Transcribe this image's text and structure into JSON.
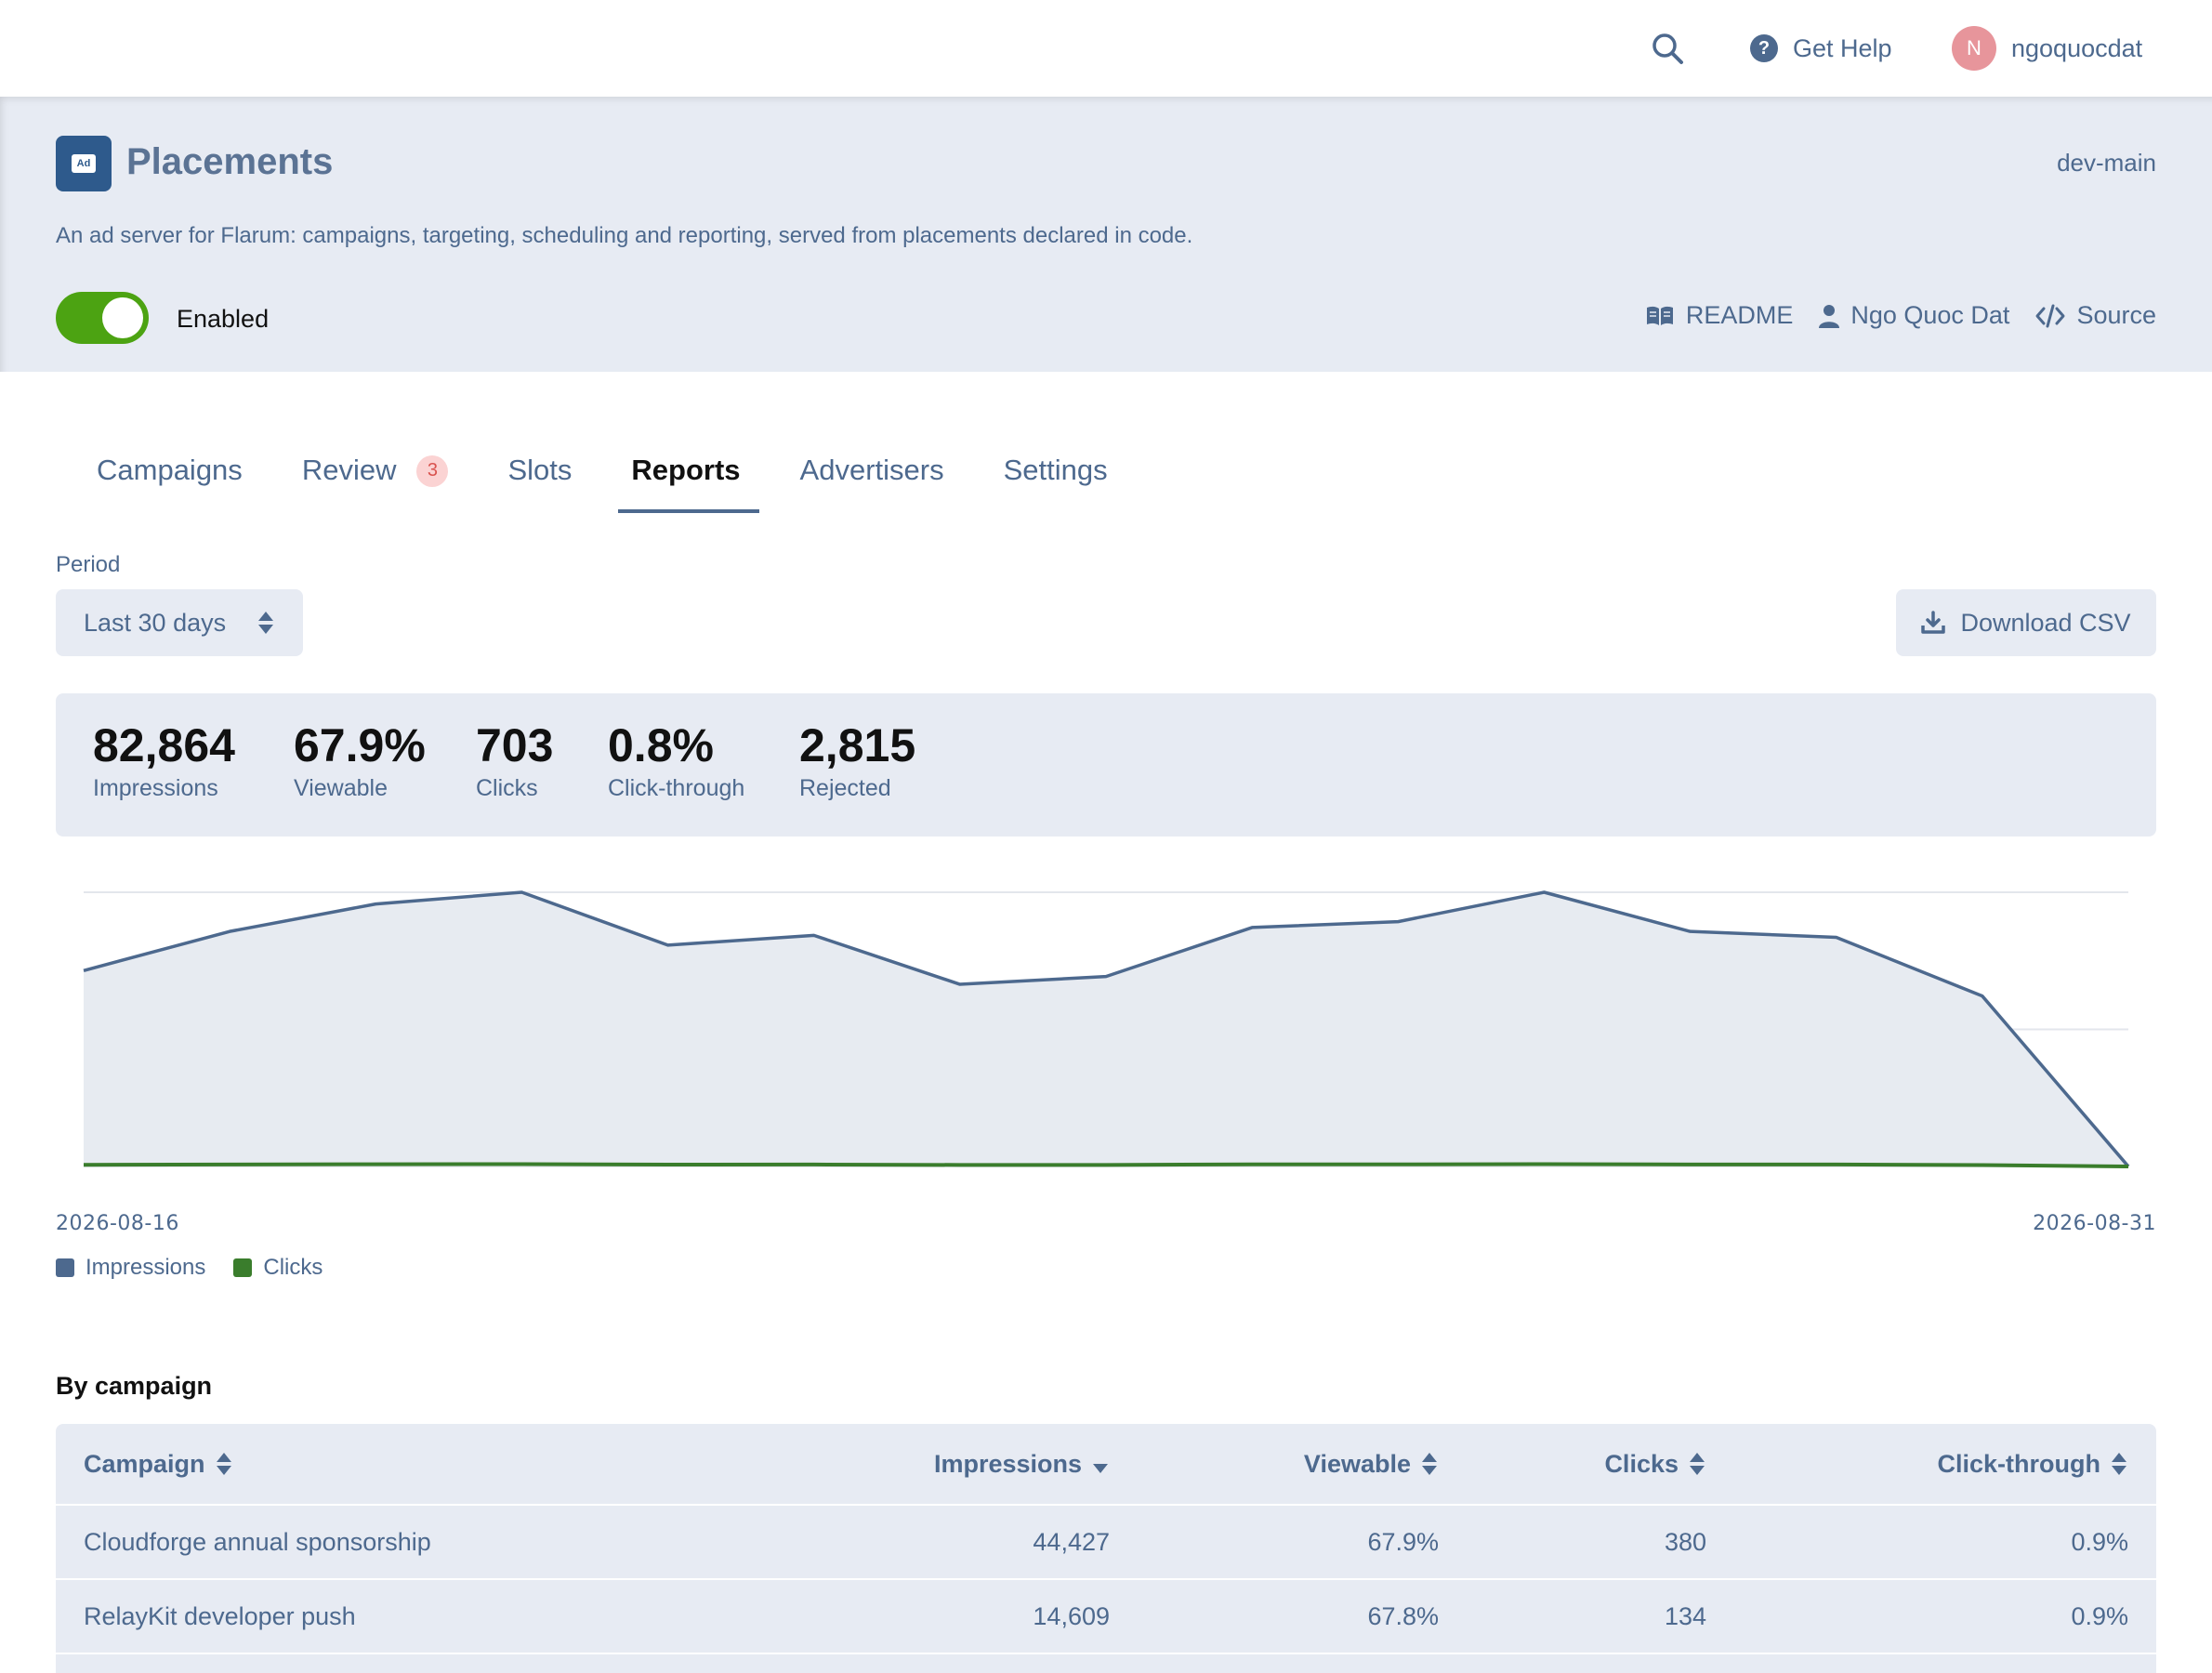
{
  "topbar": {
    "help_label": "Get Help",
    "username": "ngoquocdat",
    "avatar_initial": "N"
  },
  "extension": {
    "icon_text": "Ad",
    "title": "Placements",
    "version": "dev-main",
    "description": "An ad server for Flarum: campaigns, targeting, scheduling and reporting, served from placements declared in code.",
    "toggle_label": "Enabled",
    "links": {
      "readme": "README",
      "author": "Ngo Quoc Dat",
      "source": "Source"
    }
  },
  "tabs": [
    {
      "label": "Campaigns"
    },
    {
      "label": "Review",
      "badge": "3"
    },
    {
      "label": "Slots"
    },
    {
      "label": "Reports",
      "active": true
    },
    {
      "label": "Advertisers"
    },
    {
      "label": "Settings"
    }
  ],
  "period": {
    "label": "Period",
    "selected": "Last 30 days"
  },
  "download_label": "Download CSV",
  "stats": [
    {
      "value": "82,864",
      "label": "Impressions"
    },
    {
      "value": "67.9%",
      "label": "Viewable"
    },
    {
      "value": "703",
      "label": "Clicks"
    },
    {
      "value": "0.8%",
      "label": "Click-through"
    },
    {
      "value": "2,815",
      "label": "Rejected"
    }
  ],
  "chart_data": {
    "type": "area",
    "x": [
      "2026-08-16",
      "2026-08-17",
      "2026-08-18",
      "2026-08-19",
      "2026-08-20",
      "2026-08-21",
      "2026-08-22",
      "2026-08-23",
      "2026-08-24",
      "2026-08-25",
      "2026-08-26",
      "2026-08-27",
      "2026-08-28",
      "2026-08-29",
      "2026-08-30"
    ],
    "x_start_label": "2026-08-16",
    "x_end_label": "2026-08-31",
    "series": [
      {
        "name": "Impressions",
        "color": "#4d698e",
        "values": [
          5000,
          6000,
          6700,
          7000,
          5650,
          5900,
          4650,
          4850,
          6100,
          6250,
          7000,
          6000,
          5850,
          4350,
          0
        ]
      },
      {
        "name": "Clicks",
        "color": "#3a7d2c",
        "values": [
          42,
          50,
          56,
          60,
          47,
          49,
          39,
          40,
          52,
          53,
          60,
          50,
          49,
          36,
          0
        ]
      }
    ],
    "ylim": [
      0,
      7000
    ],
    "grid": true,
    "legend": "bottom-left"
  },
  "table": {
    "title": "By campaign",
    "columns": [
      "Campaign",
      "Impressions",
      "Viewable",
      "Clicks",
      "Click-through"
    ],
    "rows": [
      [
        "Cloudforge annual sponsorship",
        "44,427",
        "67.9%",
        "380",
        "0.9%"
      ],
      [
        "RelayKit developer push",
        "14,609",
        "67.8%",
        "134",
        "0.9%"
      ]
    ]
  },
  "colors": {
    "accent": "#4d698e",
    "panel": "#e7ebf3",
    "toggle_on": "#4ca312",
    "badge": "#fbd3d3",
    "avatar": "#e7959b"
  }
}
